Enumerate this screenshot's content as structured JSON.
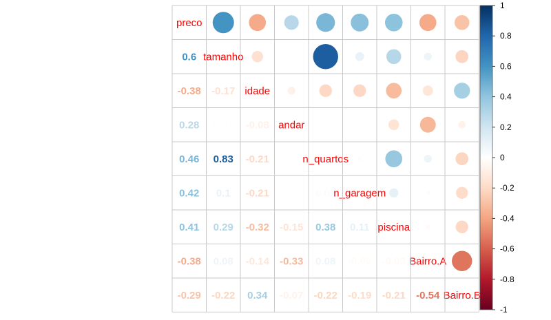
{
  "chart_data": {
    "type": "heatmap",
    "variables": [
      "preco",
      "tamanho",
      "idade",
      "andar",
      "n_quartos",
      "n_garagem",
      "piscina",
      "Bairro.A",
      "Bairro.B"
    ],
    "matrix": [
      [
        1.0,
        0.6,
        -0.38,
        0.28,
        0.46,
        0.42,
        0.41,
        -0.38,
        -0.29
      ],
      [
        0.6,
        1.0,
        -0.17,
        0.01,
        0.83,
        0.1,
        0.29,
        0.08,
        -0.22
      ],
      [
        -0.38,
        -0.17,
        1.0,
        -0.08,
        -0.21,
        -0.21,
        -0.32,
        -0.14,
        0.34
      ],
      [
        0.28,
        0.01,
        -0.08,
        1.0,
        0.01,
        0.0,
        -0.15,
        -0.33,
        -0.07
      ],
      [
        0.46,
        0.83,
        -0.21,
        0.01,
        1.0,
        0.02,
        0.38,
        0.08,
        -0.22
      ],
      [
        0.42,
        0.1,
        -0.21,
        0.0,
        0.02,
        1.0,
        0.11,
        -0.02,
        -0.19
      ],
      [
        0.41,
        0.29,
        -0.32,
        -0.15,
        0.38,
        0.11,
        1.0,
        -0.03,
        -0.21
      ],
      [
        -0.38,
        0.08,
        -0.14,
        -0.33,
        0.08,
        -0.02,
        -0.03,
        1.0,
        -0.54
      ],
      [
        -0.29,
        -0.22,
        0.34,
        -0.07,
        -0.22,
        -0.19,
        -0.21,
        -0.54,
        1.0
      ]
    ],
    "upper_method": "circle",
    "lower_method": "number",
    "colorbar": {
      "range": [
        -1,
        1
      ],
      "ticks": [
        "1",
        "0.8",
        "0.6",
        "0.4",
        "0.2",
        "0",
        "-0.2",
        "-0.4",
        "-0.6",
        "-0.8",
        "-1"
      ],
      "placement": "right"
    },
    "colors": {
      "diag_label": "#ff0000",
      "grid": "#c8c8c8",
      "scale": [
        "#67001F",
        "#B2182B",
        "#D6604D",
        "#F4A582",
        "#FDDBC7",
        "#FFFFFF",
        "#D1E5F0",
        "#92C5DE",
        "#4393C3",
        "#2166AC",
        "#053061"
      ]
    }
  }
}
